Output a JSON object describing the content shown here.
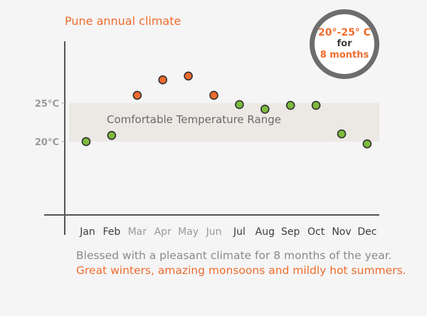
{
  "colors": {
    "accent": "#ef6c2e",
    "comfortable": "#7dbb3d",
    "axis": "#555555",
    "band": "#ece9e5",
    "month_active": "#3c3c3c",
    "month_inactive": "#9a9a9a"
  },
  "badge": {
    "line1": "20°-25° C",
    "line2": "for",
    "line3": "8 months"
  },
  "caption": {
    "line1": "Blessed with a pleasant climate for 8 months of the year.",
    "line2": "Great winters, amazing monsoons and mildly hot summers."
  },
  "chart_data": {
    "type": "scatter",
    "title": "Pune annual climate",
    "categories": [
      "Jan",
      "Feb",
      "Mar",
      "Apr",
      "May",
      "Jun",
      "Jul",
      "Aug",
      "Sep",
      "Oct",
      "Nov",
      "Dec"
    ],
    "values": [
      20.0,
      20.8,
      26.0,
      28.0,
      28.5,
      26.0,
      24.8,
      24.2,
      24.7,
      24.7,
      21.0,
      19.7
    ],
    "highlighted": [
      false,
      false,
      true,
      true,
      true,
      true,
      false,
      false,
      false,
      false,
      false,
      false
    ],
    "band": {
      "from": 20,
      "to": 25,
      "label": "Comfortable Temperature Range"
    },
    "y_ticks": [
      {
        "value": 25,
        "label": "25°C"
      },
      {
        "value": 20,
        "label": "20°C"
      }
    ],
    "ylim": [
      10.5,
      33
    ],
    "grid": false
  }
}
